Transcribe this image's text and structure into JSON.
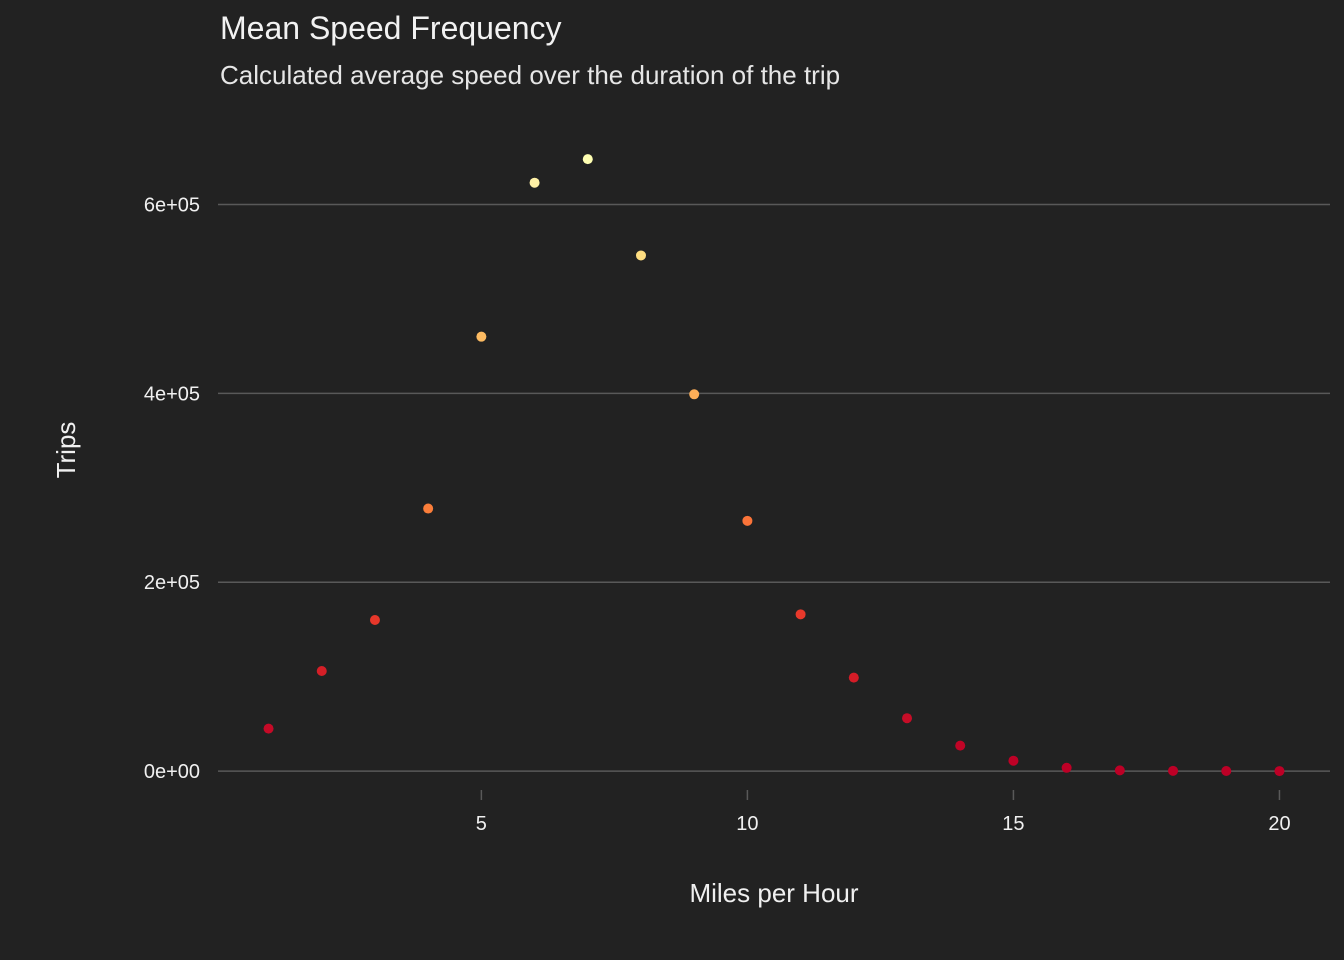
{
  "chart_data": {
    "type": "scatter",
    "title": "Mean Speed Frequency",
    "subtitle": "Calculated average speed over the duration of the trip",
    "xlabel": "Miles per Hour",
    "ylabel": "Trips",
    "xlim": [
      0.05,
      20.95
    ],
    "ylim": [
      -20000,
      700000
    ],
    "x_ticks": [
      5,
      10,
      15,
      20
    ],
    "x_tick_labels": [
      "5",
      "10",
      "15",
      "20"
    ],
    "y_ticks": [
      0,
      200000,
      400000,
      600000
    ],
    "y_tick_labels": [
      "0e+00",
      "2e+05",
      "4e+05",
      "6e+05"
    ],
    "grid": "horizontal major lines",
    "legend": "none",
    "colors": {
      "background": "#222222",
      "grid": "#595959",
      "low": "#bd0026",
      "high": "#ffffb2"
    },
    "points": [
      {
        "x": 1,
        "y": 45000,
        "color": "#c50a27"
      },
      {
        "x": 2,
        "y": 106000,
        "color": "#d51f27"
      },
      {
        "x": 3,
        "y": 160000,
        "color": "#e7372a"
      },
      {
        "x": 4,
        "y": 278000,
        "color": "#fb7e3a"
      },
      {
        "x": 5,
        "y": 460000,
        "color": "#fdbb62"
      },
      {
        "x": 6,
        "y": 623000,
        "color": "#fff1a6"
      },
      {
        "x": 7,
        "y": 648000,
        "color": "#ffffb2"
      },
      {
        "x": 8,
        "y": 546000,
        "color": "#fedd80"
      },
      {
        "x": 9,
        "y": 399000,
        "color": "#fdae58"
      },
      {
        "x": 10,
        "y": 265000,
        "color": "#fb7439"
      },
      {
        "x": 11,
        "y": 166000,
        "color": "#e8392b"
      },
      {
        "x": 12,
        "y": 99000,
        "color": "#d41c27"
      },
      {
        "x": 13,
        "y": 56000,
        "color": "#c60d27"
      },
      {
        "x": 14,
        "y": 27000,
        "color": "#c00426"
      },
      {
        "x": 15,
        "y": 11000,
        "color": "#be0126"
      },
      {
        "x": 16,
        "y": 3500,
        "color": "#bd0026"
      },
      {
        "x": 17,
        "y": 800,
        "color": "#bd0026"
      },
      {
        "x": 18,
        "y": 300,
        "color": "#bd0026"
      },
      {
        "x": 19,
        "y": 100,
        "color": "#bd0026"
      },
      {
        "x": 20,
        "y": 50,
        "color": "#bd0026"
      }
    ]
  }
}
